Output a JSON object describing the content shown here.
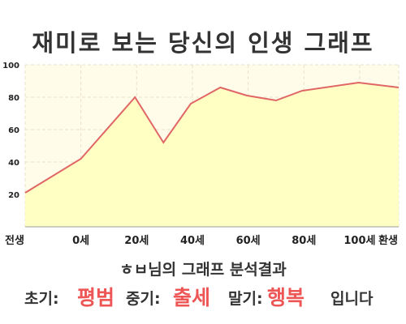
{
  "title": "재미로 보는 당신의 인생 그래프",
  "chart_data": {
    "type": "area",
    "x": [
      0,
      1.0,
      1.97,
      2.48,
      2.97,
      3.5,
      3.98,
      4.5,
      4.97,
      5.98,
      6.7
    ],
    "values": [
      21,
      42,
      80,
      52,
      76,
      86,
      81,
      78,
      84,
      89,
      86
    ],
    "x_ticks": [
      {
        "x": 0,
        "label": "전생"
      },
      {
        "x": 1,
        "label": "0세"
      },
      {
        "x": 2,
        "label": "20세"
      },
      {
        "x": 3,
        "label": "40세"
      },
      {
        "x": 4,
        "label": "60세"
      },
      {
        "x": 5,
        "label": "80세"
      },
      {
        "x": 6,
        "label": "100세"
      },
      {
        "x": 6.7,
        "label": "환생"
      }
    ],
    "y_ticks": [
      20,
      40,
      60,
      80,
      100
    ],
    "xlim": [
      0,
      6.7
    ],
    "ylim": [
      0,
      100
    ],
    "grid": true,
    "line_color": "#e06666",
    "fill_color": "#ffffc4",
    "plot_bg": "#fffdea"
  },
  "analysis": {
    "heading": "ㅎㅂ님의 그래프 분석결과",
    "early_label": "초기:",
    "early_value": "평범",
    "middle_label": "중기:",
    "middle_value": "출세",
    "late_label": "말기:",
    "late_value": "행복",
    "ending": "입니다"
  }
}
